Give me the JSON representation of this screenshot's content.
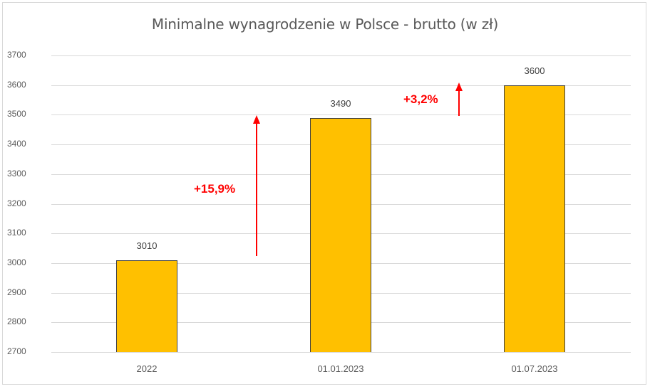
{
  "chart_data": {
    "type": "bar",
    "title": "Minimalne wynagrodzenie  w Polsce - brutto (w zł)",
    "categories": [
      "2022",
      "01.01.2023",
      "01.07.2023"
    ],
    "values": [
      3010,
      3490,
      3600
    ],
    "data_labels": [
      "3010",
      "3490",
      "3600"
    ],
    "xlabel": "",
    "ylabel": "",
    "ylim": [
      2700,
      3700
    ],
    "yticks": [
      "3700",
      "3600",
      "3500",
      "3400",
      "3300",
      "3200",
      "3100",
      "3000",
      "2900",
      "2800",
      "2700"
    ],
    "grid": true,
    "legend": null,
    "bar_color": "#FFC000",
    "annotations": [
      {
        "text": "+15,9%",
        "color": "#FF0000",
        "between": [
          "2022",
          "01.01.2023"
        ]
      },
      {
        "text": "+3,2%",
        "color": "#FF0000",
        "between": [
          "01.01.2023",
          "01.07.2023"
        ]
      }
    ]
  }
}
